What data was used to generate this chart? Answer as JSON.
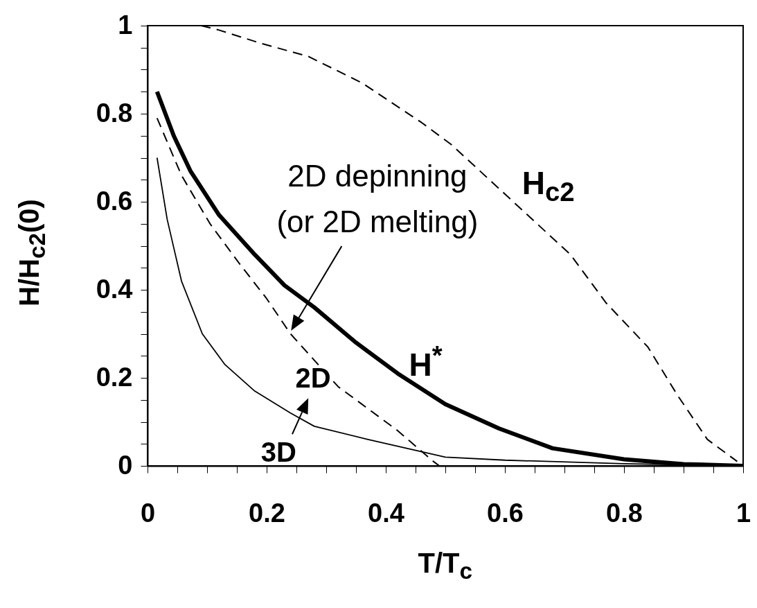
{
  "chart_data": {
    "type": "line",
    "xlabel": "T/T$_{c}$",
    "ylabel": "H/H$_{c2}$(0)",
    "xlim": [
      0,
      1
    ],
    "ylim": [
      0,
      1
    ],
    "xticks": [
      0,
      {
        "value": 0.05,
        "label": null
      },
      {
        "value": 0.1,
        "label": null
      },
      {
        "value": 0.15,
        "label": null
      },
      0.2,
      {
        "value": 0.25,
        "label": null
      },
      {
        "value": 0.3,
        "label": null
      },
      {
        "value": 0.35,
        "label": null
      },
      0.4,
      {
        "value": 0.45,
        "label": null
      },
      {
        "value": 0.5,
        "label": null
      },
      {
        "value": 0.55,
        "label": null
      },
      0.6,
      {
        "value": 0.65,
        "label": null
      },
      {
        "value": 0.7,
        "label": null
      },
      {
        "value": 0.75,
        "label": null
      },
      0.8,
      {
        "value": 0.85,
        "label": null
      },
      {
        "value": 0.9,
        "label": null
      },
      {
        "value": 0.95,
        "label": null
      },
      1
    ],
    "yticks": [
      0,
      {
        "value": 0.05,
        "label": null
      },
      {
        "value": 0.1,
        "label": null
      },
      {
        "value": 0.15,
        "label": null
      },
      0.2,
      {
        "value": 0.25,
        "label": null
      },
      {
        "value": 0.3,
        "label": null
      },
      {
        "value": 0.35,
        "label": null
      },
      0.4,
      {
        "value": 0.45,
        "label": null
      },
      {
        "value": 0.5,
        "label": null
      },
      {
        "value": 0.55,
        "label": null
      },
      0.6,
      {
        "value": 0.65,
        "label": null
      },
      {
        "value": 0.7,
        "label": null
      },
      {
        "value": 0.75,
        "label": null
      },
      0.8,
      {
        "value": 0.85,
        "label": null
      },
      {
        "value": 0.9,
        "label": null
      },
      {
        "value": 0.95,
        "label": null
      },
      1
    ],
    "grid": false,
    "series": [
      {
        "color": "#000000",
        "line_style": "dashed",
        "x": [
          0.09,
          0.12,
          0.19,
          0.27,
          0.36,
          0.46,
          0.51,
          0.63,
          0.71,
          0.77,
          0.84,
          0.89,
          0.94,
          0.99
        ],
        "values": [
          1.0,
          0.99,
          0.96,
          0.93,
          0.87,
          0.78,
          0.73,
          0.58,
          0.48,
          0.37,
          0.27,
          0.16,
          0.06,
          0.01
        ]
      },
      {
        "color": "#000000",
        "x": [
          0.016,
          0.044,
          0.072,
          0.12,
          0.18,
          0.23,
          0.28,
          0.35,
          0.42,
          0.5,
          0.59,
          0.68,
          0.8,
          0.9,
          1.0
        ],
        "values": [
          0.85,
          0.75,
          0.67,
          0.57,
          0.48,
          0.41,
          0.36,
          0.28,
          0.21,
          0.14,
          0.085,
          0.04,
          0.015,
          0.004,
          0
        ]
      },
      {
        "color": "#000000",
        "line_style": "dashed",
        "x": [
          0.016,
          0.057,
          0.105,
          0.154,
          0.2,
          0.24,
          0.32,
          0.42,
          0.48,
          0.49
        ],
        "values": [
          0.79,
          0.66,
          0.55,
          0.46,
          0.38,
          0.3,
          0.18,
          0.08,
          0.01,
          0
        ]
      },
      {
        "color": "#000000",
        "x": [
          0.016,
          0.033,
          0.057,
          0.092,
          0.13,
          0.18,
          0.24,
          0.28,
          0.37,
          0.5,
          0.6,
          0.8,
          1.0
        ],
        "values": [
          0.7,
          0.56,
          0.42,
          0.3,
          0.23,
          0.17,
          0.12,
          0.09,
          0.06,
          0.02,
          0.013,
          0.005,
          0
        ]
      }
    ],
    "annotations": [
      "2D depinning\n(or 2D melting)",
      "H$_{c2}$",
      "H$^{*}$",
      "2D",
      "3D"
    ]
  }
}
